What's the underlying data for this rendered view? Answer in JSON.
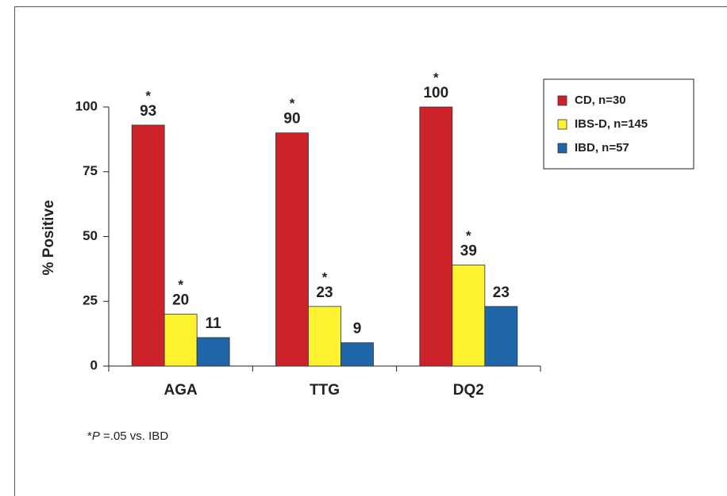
{
  "chart_data": {
    "type": "bar",
    "y_label": "% Positive",
    "categories": [
      "AGA",
      "TTG",
      "DQ2"
    ],
    "series": [
      {
        "name": "CD, n=30",
        "color": "#cc2229",
        "values": [
          93,
          90,
          100
        ],
        "annotations": [
          "*",
          "*",
          "*"
        ]
      },
      {
        "name": "IBS-D, n=145",
        "color": "#fff231",
        "values": [
          20,
          23,
          39
        ],
        "annotations": [
          "*",
          "*",
          "*"
        ]
      },
      {
        "name": "IBD, n=57",
        "color": "#1f66a8",
        "values": [
          11,
          9,
          23
        ]
      }
    ],
    "ylim": [
      0,
      100
    ],
    "yticks": [
      0,
      25,
      50,
      75,
      100
    ],
    "legend": "right",
    "footnote": {
      "symbol": "*",
      "italic": "P",
      "text": " =.05 vs. IBD"
    }
  }
}
